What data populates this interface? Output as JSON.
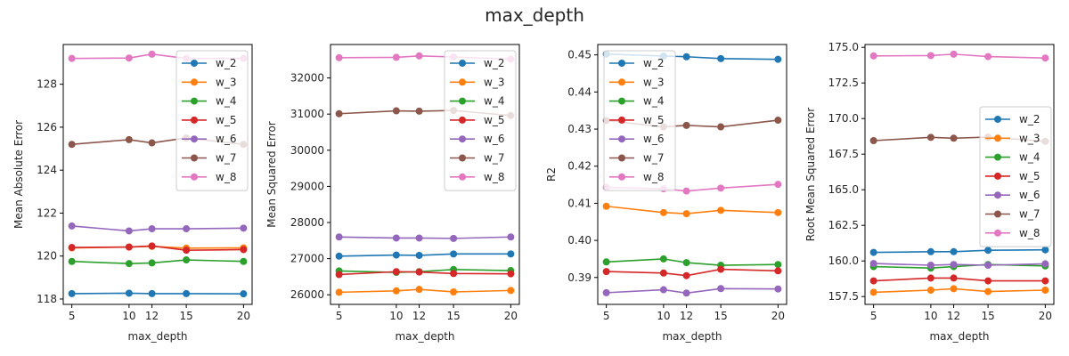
{
  "figure": {
    "title": "max_depth"
  },
  "chart_data": [
    {
      "type": "line",
      "xlabel": "max_depth",
      "ylabel": "Mean Absolute Error",
      "x": [
        5,
        10,
        12,
        15,
        20
      ],
      "xticks": [
        5,
        10,
        12,
        15,
        20
      ],
      "ylim": [
        117.75,
        129.85
      ],
      "yticks": [
        118,
        120,
        122,
        124,
        126,
        128
      ],
      "yticklabels": [
        "118",
        "120",
        "122",
        "124",
        "126",
        "128"
      ],
      "legend_position": "upper right",
      "series": [
        {
          "name": "w_2",
          "color": "#1f77b4",
          "values": [
            118.25,
            118.27,
            118.25,
            118.25,
            118.24
          ]
        },
        {
          "name": "w_3",
          "color": "#ff7f0e",
          "values": [
            120.38,
            120.42,
            120.45,
            120.37,
            120.38
          ]
        },
        {
          "name": "w_4",
          "color": "#2ca02c",
          "values": [
            119.75,
            119.65,
            119.68,
            119.82,
            119.75
          ]
        },
        {
          "name": "w_5",
          "color": "#d62728",
          "values": [
            120.4,
            120.42,
            120.47,
            120.27,
            120.3
          ]
        },
        {
          "name": "w_6",
          "color": "#9467bd",
          "values": [
            121.4,
            121.17,
            121.27,
            121.27,
            121.3
          ]
        },
        {
          "name": "w_7",
          "color": "#8c564b",
          "values": [
            125.2,
            125.42,
            125.27,
            125.5,
            125.2
          ]
        },
        {
          "name": "w_8",
          "color": "#e377c2",
          "values": [
            129.2,
            129.22,
            129.4,
            129.2,
            129.2
          ]
        }
      ]
    },
    {
      "type": "line",
      "xlabel": "max_depth",
      "ylabel": "Mean Squared Error",
      "x": [
        5,
        10,
        12,
        15,
        20
      ],
      "xticks": [
        5,
        10,
        12,
        15,
        20
      ],
      "ylim": [
        25735,
        32925
      ],
      "yticks": [
        26000,
        27000,
        28000,
        29000,
        30000,
        31000,
        32000
      ],
      "yticklabels": [
        "26000",
        "27000",
        "28000",
        "29000",
        "30000",
        "31000",
        "32000"
      ],
      "legend_position": "upper right",
      "series": [
        {
          "name": "w_2",
          "color": "#1f77b4",
          "values": [
            27070,
            27100,
            27090,
            27130,
            27130
          ]
        },
        {
          "name": "w_3",
          "color": "#ff7f0e",
          "values": [
            26070,
            26110,
            26150,
            26080,
            26120
          ]
        },
        {
          "name": "w_4",
          "color": "#2ca02c",
          "values": [
            26660,
            26620,
            26640,
            26700,
            26670
          ]
        },
        {
          "name": "w_5",
          "color": "#d62728",
          "values": [
            26560,
            26640,
            26630,
            26590,
            26580
          ]
        },
        {
          "name": "w_6",
          "color": "#9467bd",
          "values": [
            27600,
            27570,
            27570,
            27560,
            27600
          ]
        },
        {
          "name": "w_7",
          "color": "#8c564b",
          "values": [
            31010,
            31090,
            31080,
            31100,
            30960
          ]
        },
        {
          "name": "w_8",
          "color": "#e377c2",
          "values": [
            32560,
            32570,
            32610,
            32580,
            32520
          ]
        }
      ]
    },
    {
      "type": "line",
      "xlabel": "max_depth",
      "ylabel": "R2",
      "x": [
        5,
        10,
        12,
        15,
        20
      ],
      "xticks": [
        5,
        10,
        12,
        15,
        20
      ],
      "ylim": [
        0.38275,
        0.4528
      ],
      "yticks": [
        0.39,
        0.4,
        0.41,
        0.42,
        0.43,
        0.44,
        0.45
      ],
      "yticklabels": [
        "0.39",
        "0.40",
        "0.41",
        "0.42",
        "0.43",
        "0.44",
        "0.45"
      ],
      "legend_position": "upper left",
      "series": [
        {
          "name": "w_2",
          "color": "#1f77b4",
          "values": [
            0.4502,
            0.4497,
            0.4495,
            0.449,
            0.4488
          ]
        },
        {
          "name": "w_3",
          "color": "#ff7f0e",
          "values": [
            0.4092,
            0.4075,
            0.4072,
            0.4081,
            0.4075
          ]
        },
        {
          "name": "w_4",
          "color": "#2ca02c",
          "values": [
            0.3942,
            0.395,
            0.394,
            0.3933,
            0.3935
          ]
        },
        {
          "name": "w_5",
          "color": "#d62728",
          "values": [
            0.3916,
            0.3912,
            0.3905,
            0.3922,
            0.3918
          ]
        },
        {
          "name": "w_6",
          "color": "#9467bd",
          "values": [
            0.3859,
            0.3867,
            0.3858,
            0.387,
            0.3869
          ]
        },
        {
          "name": "w_7",
          "color": "#8c564b",
          "values": [
            0.4323,
            0.4306,
            0.431,
            0.4306,
            0.4324
          ]
        },
        {
          "name": "w_8",
          "color": "#e377c2",
          "values": [
            0.4143,
            0.4139,
            0.4133,
            0.4141,
            0.4151
          ]
        }
      ]
    },
    {
      "type": "line",
      "xlabel": "max_depth",
      "ylabel": "Root Mean Squared Error",
      "x": [
        5,
        10,
        12,
        15,
        20
      ],
      "xticks": [
        5,
        10,
        12,
        15,
        20
      ],
      "ylim": [
        156.95,
        175.2
      ],
      "yticks": [
        157.5,
        160.0,
        162.5,
        165.0,
        167.5,
        170.0,
        172.5,
        175.0
      ],
      "yticklabels": [
        "157.5",
        "160.0",
        "162.5",
        "165.0",
        "167.5",
        "170.0",
        "172.5",
        "175.0"
      ],
      "legend_position": "center right",
      "series": [
        {
          "name": "w_2",
          "color": "#1f77b4",
          "values": [
            160.6,
            160.65,
            160.65,
            160.75,
            160.78
          ]
        },
        {
          "name": "w_3",
          "color": "#ff7f0e",
          "values": [
            157.8,
            157.95,
            158.05,
            157.85,
            157.95
          ]
        },
        {
          "name": "w_4",
          "color": "#2ca02c",
          "values": [
            159.6,
            159.5,
            159.6,
            159.75,
            159.65
          ]
        },
        {
          "name": "w_5",
          "color": "#d62728",
          "values": [
            158.6,
            158.8,
            158.8,
            158.6,
            158.6
          ]
        },
        {
          "name": "w_6",
          "color": "#9467bd",
          "values": [
            159.82,
            159.7,
            159.75,
            159.7,
            159.8
          ]
        },
        {
          "name": "w_7",
          "color": "#8c564b",
          "values": [
            168.45,
            168.68,
            168.62,
            168.7,
            168.4
          ]
        },
        {
          "name": "w_8",
          "color": "#e377c2",
          "values": [
            174.4,
            174.42,
            174.52,
            174.35,
            174.25
          ]
        }
      ]
    }
  ]
}
